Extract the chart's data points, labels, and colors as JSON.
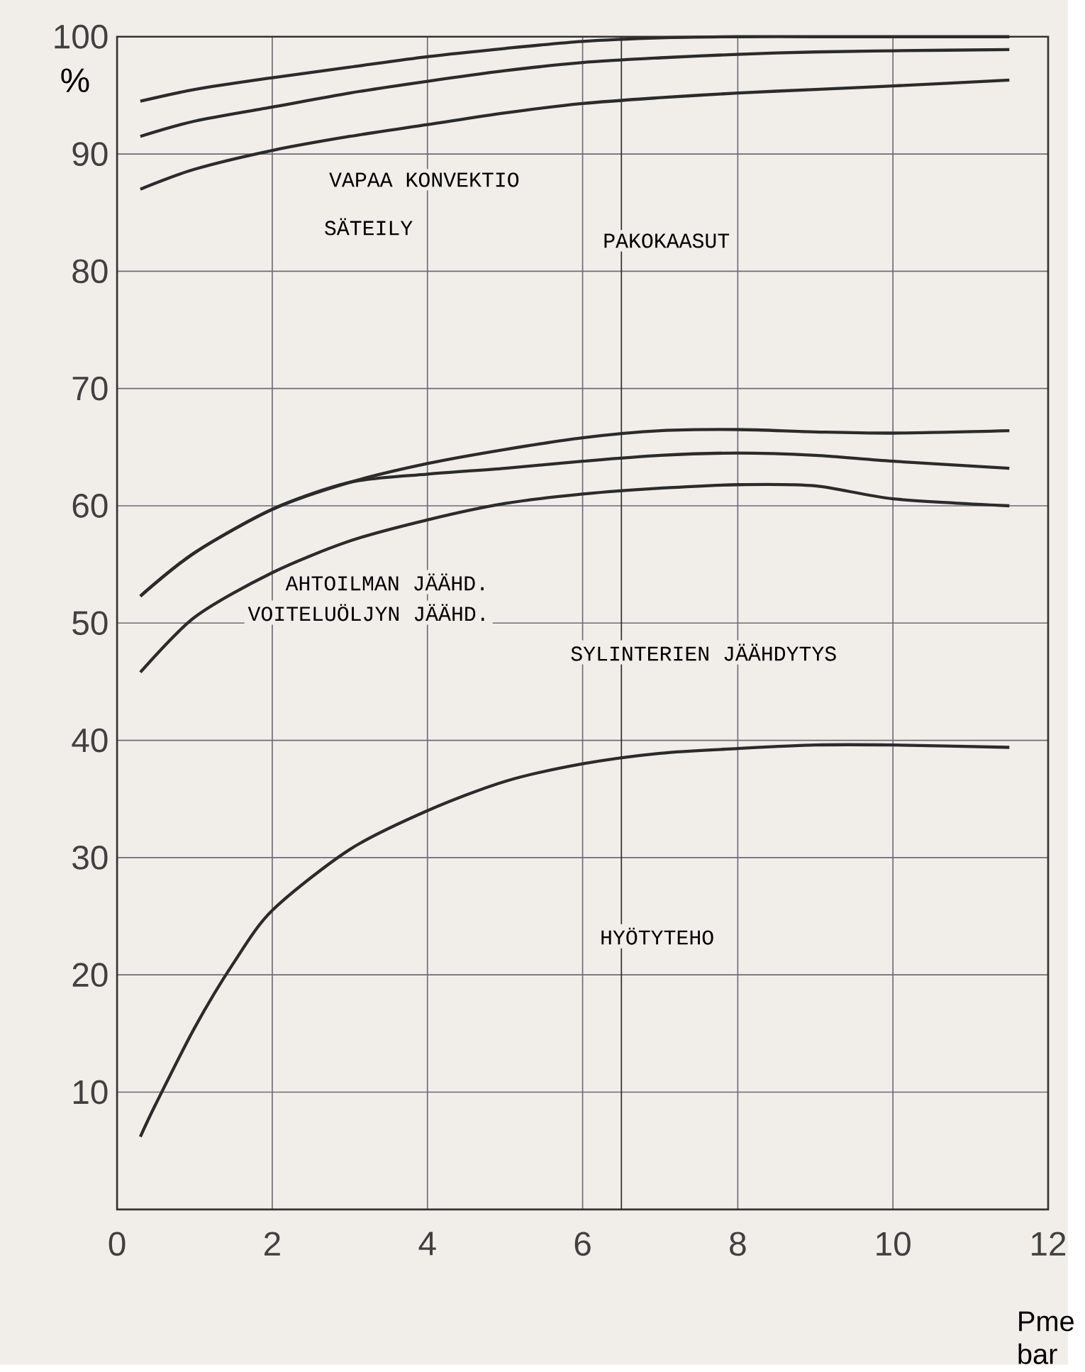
{
  "chart_data": {
    "type": "line",
    "ylabel": "%",
    "xlabel": "Pme bar",
    "xlim": [
      0,
      12
    ],
    "xticks": [
      0,
      2,
      4,
      6,
      8,
      10,
      12
    ],
    "ylim": [
      0,
      100
    ],
    "yticks": [
      {
        "value": 0,
        "label": null
      },
      10,
      20,
      30,
      40,
      50,
      60,
      70,
      80,
      90,
      100
    ],
    "grid": true,
    "marker": "none",
    "line_style": "solid",
    "series": [
      {
        "color": "#2b2b2b",
        "x": [
          0.3,
          1,
          2,
          3,
          4,
          5,
          6,
          7,
          8,
          9,
          10,
          11.5
        ],
        "values": [
          94.5,
          95.5,
          96.5,
          97.4,
          98.3,
          99,
          99.6,
          99.9,
          100,
          100,
          100,
          100
        ]
      },
      {
        "color": "#2b2b2b",
        "x": [
          0.3,
          1,
          2,
          3,
          4,
          5,
          6,
          7,
          8,
          9,
          10,
          11.5
        ],
        "values": [
          91.5,
          92.8,
          94,
          95.2,
          96.2,
          97.1,
          97.8,
          98.2,
          98.5,
          98.7,
          98.8,
          98.9
        ]
      },
      {
        "color": "#2b2b2b",
        "x": [
          0.3,
          1,
          2,
          3,
          4,
          5,
          6,
          7,
          8,
          9,
          10,
          11.5
        ],
        "values": [
          87,
          88.7,
          90.3,
          91.5,
          92.5,
          93.5,
          94.3,
          94.8,
          95.2,
          95.5,
          95.8,
          96.3
        ]
      },
      {
        "color": "#2b2b2b",
        "x": [
          0.3,
          1,
          2,
          3,
          4,
          5,
          6,
          7,
          8,
          9,
          10,
          11.5
        ],
        "values": [
          52.3,
          56,
          59.7,
          62,
          63.6,
          64.8,
          65.8,
          66.4,
          66.5,
          66.3,
          66.2,
          66.4
        ]
      },
      {
        "color": "#2b2b2b",
        "x": [
          0.3,
          1,
          2,
          3,
          4,
          5,
          6,
          7,
          8,
          9,
          10,
          11.5
        ],
        "values": [
          52.3,
          56,
          59.7,
          62,
          62.7,
          63.2,
          63.8,
          64.3,
          64.5,
          64.3,
          63.8,
          63.2
        ]
      },
      {
        "color": "#2b2b2b",
        "x": [
          0.3,
          1,
          2,
          3,
          4,
          5,
          6,
          7,
          8,
          9,
          10,
          11.5
        ],
        "values": [
          45.8,
          50.5,
          54.3,
          57,
          58.8,
          60.2,
          61,
          61.5,
          61.8,
          61.7,
          60.6,
          60
        ]
      },
      {
        "color": "#2b2b2b",
        "x": [
          0.3,
          0.5,
          1,
          1.5,
          2,
          3,
          4,
          5,
          6,
          7,
          8,
          9,
          10,
          11.5
        ],
        "values": [
          6.2,
          9,
          15.5,
          21,
          25.5,
          30.7,
          34,
          36.5,
          38,
          38.9,
          39.3,
          39.6,
          39.6,
          39.4
        ]
      }
    ],
    "ref_lines": [
      {
        "axis": "x",
        "value": 6.5,
        "color": "#2b2b2b"
      }
    ],
    "annotations": [
      "VAPAA KONVEKTIO",
      "SÄTEILY",
      "PAKOKAASUT",
      "AHTOILMAN JÄÄHD.",
      "VOITELUÖLJYN JÄÄHD.",
      "SYLINTERIEN JÄÄHDYTYS",
      "HYÖTYTEHO"
    ]
  }
}
